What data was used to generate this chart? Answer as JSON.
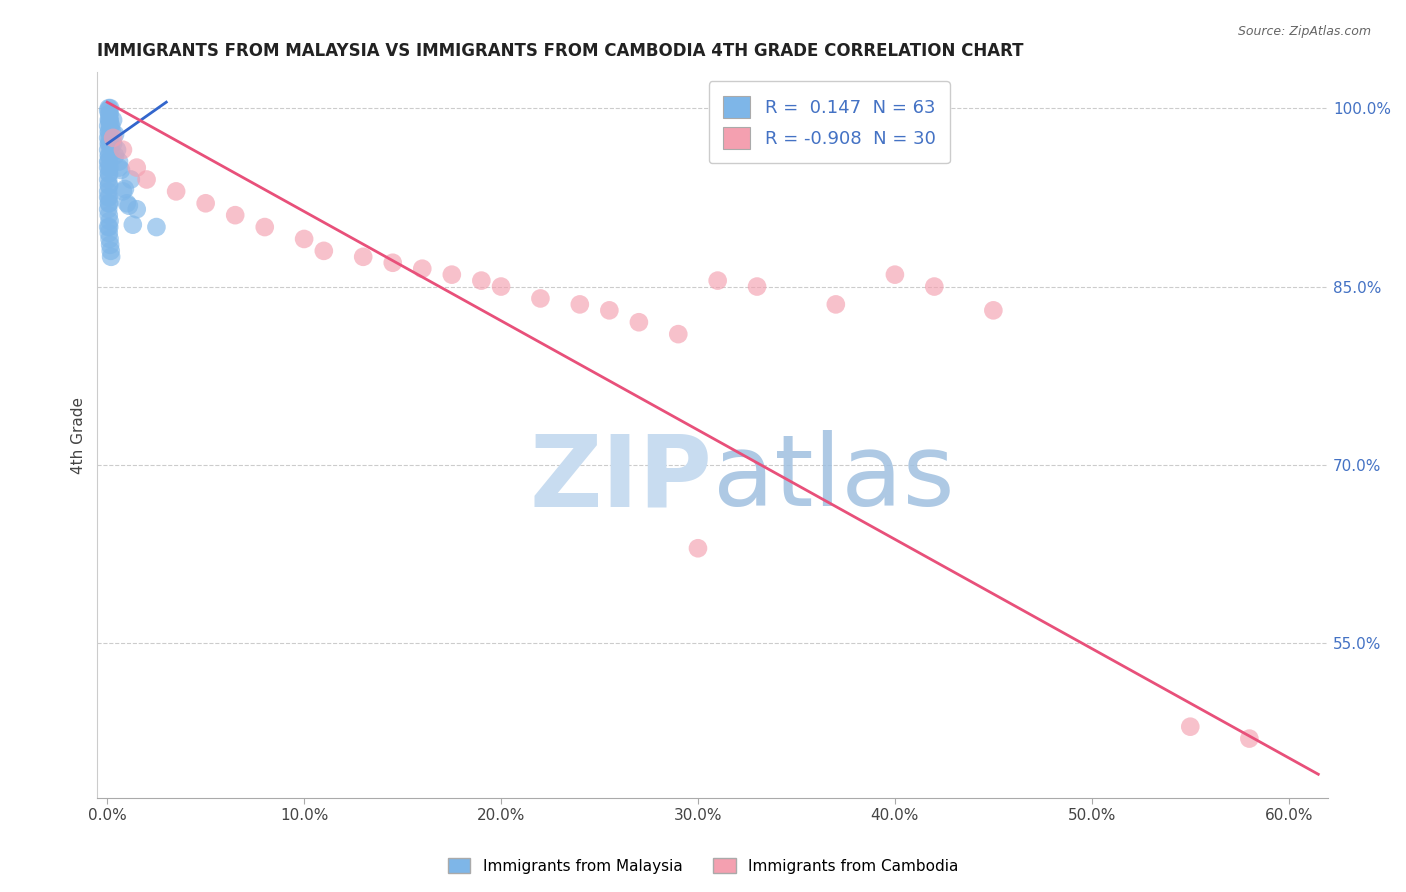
{
  "title": "IMMIGRANTS FROM MALAYSIA VS IMMIGRANTS FROM CAMBODIA 4TH GRADE CORRELATION CHART",
  "source_text": "Source: ZipAtlas.com",
  "ylabel": "4th Grade",
  "xlabel_ticks": [
    "0.0%",
    "10.0%",
    "20.0%",
    "30.0%",
    "40.0%",
    "50.0%",
    "60.0%"
  ],
  "xlabel_vals": [
    0.0,
    10.0,
    20.0,
    30.0,
    40.0,
    50.0,
    60.0
  ],
  "ytick_labels": [
    "100.0%",
    "85.0%",
    "70.0%",
    "55.0%"
  ],
  "ytick_vals": [
    100.0,
    85.0,
    70.0,
    55.0
  ],
  "ymin": 42.0,
  "ymax": 103.0,
  "xmin": -0.5,
  "xmax": 62.0,
  "blue_R": 0.147,
  "blue_N": 63,
  "pink_R": -0.908,
  "pink_N": 30,
  "blue_color": "#7EB6E8",
  "pink_color": "#F4A0B0",
  "blue_line_color": "#3366CC",
  "pink_line_color": "#E8507A",
  "watermark_zip": "ZIP",
  "watermark_atlas": "atlas",
  "watermark_color_zip": "#C8DCF0",
  "watermark_color_atlas": "#A8C8E8",
  "legend_label_blue": "Immigrants from Malaysia",
  "legend_label_pink": "Immigrants from Cambodia",
  "blue_scatter_x": [
    0.05,
    0.08,
    0.1,
    0.12,
    0.15,
    0.05,
    0.08,
    0.1,
    0.12,
    0.05,
    0.08,
    0.1,
    0.05,
    0.08,
    0.1,
    0.12,
    0.05,
    0.08,
    0.05,
    0.08,
    0.1,
    0.12,
    0.05,
    0.08,
    0.1,
    0.05,
    0.08,
    0.05,
    0.08,
    0.1,
    0.12,
    0.15,
    0.18,
    0.2,
    0.25,
    0.05,
    0.08,
    0.1,
    0.12,
    0.05,
    0.08,
    0.1,
    0.12,
    0.15,
    0.18,
    0.2,
    0.5,
    0.6,
    0.8,
    1.0,
    1.2,
    1.5,
    0.3,
    0.4,
    2.5,
    0.2,
    0.3,
    0.4,
    0.6,
    0.7,
    0.9,
    1.1,
    1.3
  ],
  "blue_scatter_y": [
    99.8,
    100.0,
    99.5,
    99.0,
    100.0,
    98.5,
    99.0,
    98.0,
    99.5,
    97.5,
    98.0,
    97.0,
    96.5,
    97.0,
    96.0,
    97.5,
    95.5,
    96.0,
    95.0,
    95.5,
    94.5,
    95.0,
    94.0,
    94.5,
    93.5,
    93.0,
    93.5,
    92.5,
    92.0,
    92.5,
    99.0,
    98.5,
    97.0,
    96.5,
    98.0,
    91.5,
    91.0,
    92.0,
    90.5,
    90.0,
    89.5,
    90.0,
    89.0,
    88.5,
    88.0,
    87.5,
    96.5,
    95.0,
    93.0,
    92.0,
    94.0,
    91.5,
    97.0,
    96.0,
    90.0,
    98.5,
    99.0,
    97.8,
    95.5,
    94.8,
    93.2,
    91.8,
    90.2
  ],
  "pink_scatter_x": [
    0.3,
    0.8,
    1.5,
    2.0,
    3.5,
    5.0,
    6.5,
    8.0,
    10.0,
    11.0,
    13.0,
    14.5,
    16.0,
    17.5,
    19.0,
    20.0,
    22.0,
    24.0,
    25.5,
    27.0,
    29.0,
    31.0,
    33.0,
    37.0,
    40.0,
    42.0,
    45.0,
    55.0,
    58.0,
    30.0
  ],
  "pink_scatter_y": [
    97.5,
    96.5,
    95.0,
    94.0,
    93.0,
    92.0,
    91.0,
    90.0,
    89.0,
    88.0,
    87.5,
    87.0,
    86.5,
    86.0,
    85.5,
    85.0,
    84.0,
    83.5,
    83.0,
    82.0,
    81.0,
    85.5,
    85.0,
    83.5,
    86.0,
    85.0,
    83.0,
    48.0,
    47.0,
    63.0
  ],
  "blue_trend_x": [
    0.0,
    3.0
  ],
  "blue_trend_y": [
    97.0,
    100.5
  ],
  "pink_trend_x": [
    0.0,
    61.5
  ],
  "pink_trend_y": [
    100.5,
    44.0
  ]
}
